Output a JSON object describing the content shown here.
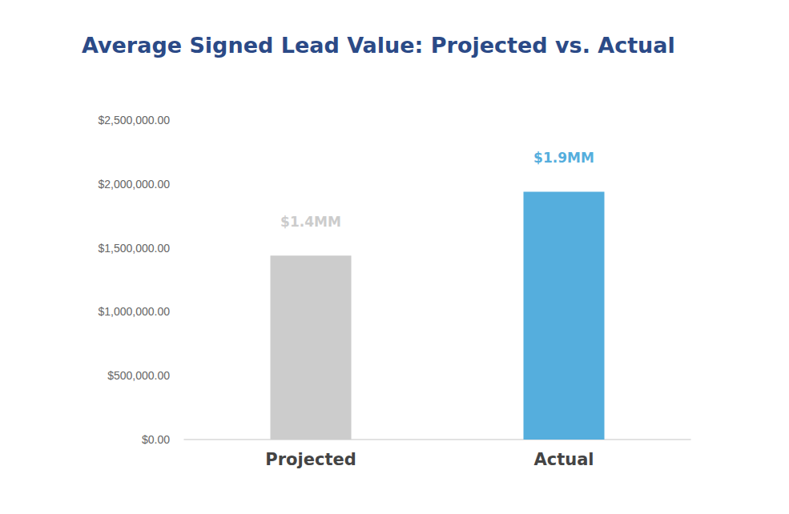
{
  "chart_data": {
    "type": "bar",
    "title": "Average Signed Lead Value: Projected vs. Actual",
    "categories": [
      "Projected",
      "Actual"
    ],
    "values": [
      1440000,
      1940000
    ],
    "value_labels": [
      "$1.4MM",
      "$1.9MM"
    ],
    "colors": [
      "#cccccc",
      "#55aedd"
    ],
    "ylim": [
      0,
      2500000
    ],
    "yticks": [
      {
        "value": 0,
        "label": "$0.00"
      },
      {
        "value": 500000,
        "label": "$500,000.00"
      },
      {
        "value": 1000000,
        "label": "$1,000,000.00"
      },
      {
        "value": 1500000,
        "label": "$1,500,000.00"
      },
      {
        "value": 2000000,
        "label": "$2,000,000.00"
      },
      {
        "value": 2500000,
        "label": "$2,500,000.00"
      }
    ],
    "grid": false,
    "data_labels": true
  }
}
